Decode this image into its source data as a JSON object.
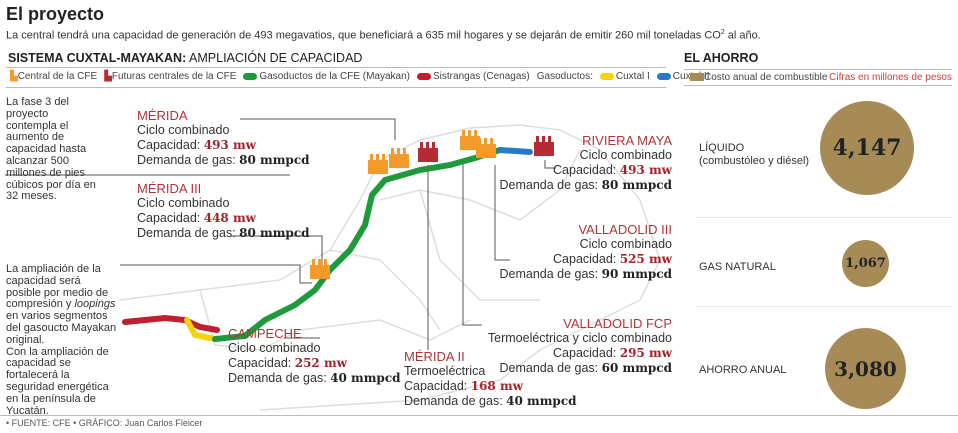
{
  "title": "El proyecto",
  "subtitle": "La central tendrá una capacidad de generación de 493 megavatios, que beneficiará a 635 mil hogares y se dejarán de emitir 260 mil toneladas CO",
  "subtitle_sup": "2",
  "subtitle_end": " al año.",
  "map_section": {
    "title_bold": "SISTEMA CUXTAL-MAYAKAN:",
    "title_rest": " AMPLIACIÓN DE CAPACIDAD"
  },
  "legend": {
    "items": [
      {
        "label": "Central de la CFE",
        "color": "#f39a2a",
        "icon": "factory-icon"
      },
      {
        "label": "Futuras centrales de la CFE",
        "color": "#b62a35",
        "icon": "factory-icon"
      },
      {
        "label": "Gasoductos de la CFE (Mayakan)",
        "color": "#1e9a3c"
      },
      {
        "label": "Sistrangas (Cenagas)",
        "color": "#c0202e"
      },
      {
        "label": "Cuxtal I",
        "color": "#f5d10f"
      },
      {
        "label": "Cuxtal II",
        "color": "#2979c9"
      }
    ],
    "gasoductos_label": "Gasoductos:"
  },
  "notes": {
    "fase3": "La fase 3 del proyecto contempla el aumento de capacidad hasta alcanzar 500 millones de pies cúbicos por día en 32 meses.",
    "ampliacion_a": "La ampliación de la capacidad será posible por medio de compresión y ",
    "ampliacion_i": "loopings",
    "ampliacion_b": " en varios segmentos del gasoucto Mayakan original.",
    "ampliacion_c": "Con la ampliación de capacidad se fortalecerá la seguridad energética en la península de Yucatán."
  },
  "labels": {
    "capacidad": "Capacidad: ",
    "demanda": "Demanda de gas: "
  },
  "plants": {
    "merida": {
      "name": "MÉRIDA",
      "type": "Ciclo combinado",
      "capacity": "493 mw",
      "gas": "80 mmpcd"
    },
    "merida3": {
      "name": "MÉRIDA III",
      "type": "Ciclo combinado",
      "capacity": "448 mw",
      "gas": "80 mmpcd"
    },
    "campeche": {
      "name": "CAMPECHE",
      "type": "Ciclo combinado",
      "capacity": "252 mw",
      "gas": "40 mmpcd"
    },
    "merida2": {
      "name": "MÉRIDA II",
      "type": "Termoeléctrica",
      "capacity": "168 mw",
      "gas": "40 mmpcd"
    },
    "valladolid_fcp": {
      "name": "VALLADOLID FCP",
      "type": "Termoeléctrica  y ciclo combinado",
      "capacity": "295 mw",
      "gas": "60 mmpcd"
    },
    "valladolid3": {
      "name": "VALLADOLID III",
      "type": "Ciclo combinado",
      "capacity": "525 mw",
      "gas": "90 mmpcd"
    },
    "riviera": {
      "name": "RIVIERA MAYA",
      "type": "Ciclo combinado",
      "capacity": "493 mw",
      "gas": "80 mmpcd"
    }
  },
  "ahorro": {
    "title": "EL AHORRO",
    "legend": "Costo anual de combustible",
    "units": "Cifras en millones de pesos",
    "color": "#a68b57",
    "rows": [
      {
        "label": "LÍQUIDO",
        "sublabel": "(combustóleo y diésel)",
        "value": "4,147"
      },
      {
        "label": "GAS NATURAL",
        "value": "1,067"
      },
      {
        "label": "AHORRO ANUAL",
        "value": "3,080"
      }
    ]
  },
  "footer": "• FUENTE: CFE • GRÁFICO: Juan Carlos Fleicer"
}
